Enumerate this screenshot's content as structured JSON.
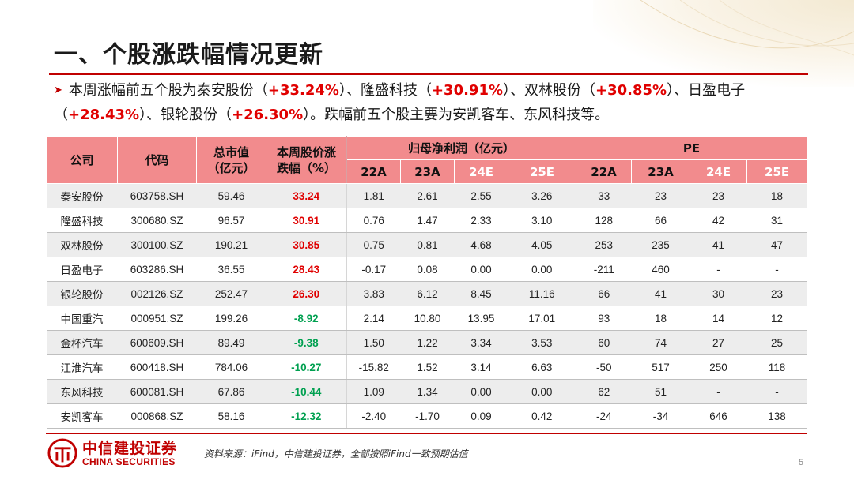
{
  "title": "一、个股涨跌幅情况更新",
  "summary": {
    "s1": "本周涨幅前五个股为秦安股份（",
    "p1": "+33.24%",
    "s2": "）、隆盛科技（",
    "p2": "+30.91%",
    "s3": "）、双林股份（",
    "p3": "+30.85%",
    "s4": "）、日盈电子（",
    "p4": "+28.43%",
    "s5": "）、银轮股份（",
    "p5": "+26.30%",
    "s6": "）。跌幅前五个股主要为安凯客车、东风科技等。"
  },
  "table": {
    "headers": {
      "company": "公司",
      "code": "代码",
      "mcap": "总市值（亿元）",
      "change": "本周股价涨跌幅（%）",
      "profit_group": "归母净利润（亿元）",
      "pe_group": "PE",
      "y22": "22A",
      "y23": "23A",
      "y24": "24E",
      "y25": "25E"
    },
    "rows": [
      {
        "name": "秦安股份",
        "code": "603758.SH",
        "mcap": "59.46",
        "chg": "33.24",
        "dir": "up",
        "p22": "1.81",
        "p23": "2.61",
        "p24": "2.55",
        "p25": "3.26",
        "pe22": "33",
        "pe23": "23",
        "pe24": "23",
        "pe25": "18"
      },
      {
        "name": "隆盛科技",
        "code": "300680.SZ",
        "mcap": "96.57",
        "chg": "30.91",
        "dir": "up",
        "p22": "0.76",
        "p23": "1.47",
        "p24": "2.33",
        "p25": "3.10",
        "pe22": "128",
        "pe23": "66",
        "pe24": "42",
        "pe25": "31"
      },
      {
        "name": "双林股份",
        "code": "300100.SZ",
        "mcap": "190.21",
        "chg": "30.85",
        "dir": "up",
        "p22": "0.75",
        "p23": "0.81",
        "p24": "4.68",
        "p25": "4.05",
        "pe22": "253",
        "pe23": "235",
        "pe24": "41",
        "pe25": "47"
      },
      {
        "name": "日盈电子",
        "code": "603286.SH",
        "mcap": "36.55",
        "chg": "28.43",
        "dir": "up",
        "p22": "-0.17",
        "p23": "0.08",
        "p24": "0.00",
        "p25": "0.00",
        "pe22": "-211",
        "pe23": "460",
        "pe24": "-",
        "pe25": "-"
      },
      {
        "name": "银轮股份",
        "code": "002126.SZ",
        "mcap": "252.47",
        "chg": "26.30",
        "dir": "up",
        "p22": "3.83",
        "p23": "6.12",
        "p24": "8.45",
        "p25": "11.16",
        "pe22": "66",
        "pe23": "41",
        "pe24": "30",
        "pe25": "23"
      },
      {
        "name": "中国重汽",
        "code": "000951.SZ",
        "mcap": "199.26",
        "chg": "-8.92",
        "dir": "down",
        "p22": "2.14",
        "p23": "10.80",
        "p24": "13.95",
        "p25": "17.01",
        "pe22": "93",
        "pe23": "18",
        "pe24": "14",
        "pe25": "12"
      },
      {
        "name": "金杯汽车",
        "code": "600609.SH",
        "mcap": "89.49",
        "chg": "-9.38",
        "dir": "down",
        "p22": "1.50",
        "p23": "1.22",
        "p24": "3.34",
        "p25": "3.53",
        "pe22": "60",
        "pe23": "74",
        "pe24": "27",
        "pe25": "25"
      },
      {
        "name": "江淮汽车",
        "code": "600418.SH",
        "mcap": "784.06",
        "chg": "-10.27",
        "dir": "down",
        "p22": "-15.82",
        "p23": "1.52",
        "p24": "3.14",
        "p25": "6.63",
        "pe22": "-50",
        "pe23": "517",
        "pe24": "250",
        "pe25": "118"
      },
      {
        "name": "东风科技",
        "code": "600081.SH",
        "mcap": "67.86",
        "chg": "-10.44",
        "dir": "down",
        "p22": "1.09",
        "p23": "1.34",
        "p24": "0.00",
        "p25": "0.00",
        "pe22": "62",
        "pe23": "51",
        "pe24": "-",
        "pe25": "-"
      },
      {
        "name": "安凯客车",
        "code": "000868.SZ",
        "mcap": "58.16",
        "chg": "-12.32",
        "dir": "down",
        "p22": "-2.40",
        "p23": "-1.70",
        "p24": "0.09",
        "p25": "0.42",
        "pe22": "-24",
        "pe23": "-34",
        "pe24": "646",
        "pe25": "138"
      }
    ]
  },
  "logo": {
    "cn": "中信建投证券",
    "en": "CHINA SECURITIES"
  },
  "source": "资料来源：iFind，中信建投证券，全部按照iFind一致预期估值",
  "page_number": "5",
  "colors": {
    "accent_red": "#c00000",
    "header_pink": "#f28b8d",
    "up": "#e00000",
    "down": "#00a050"
  }
}
